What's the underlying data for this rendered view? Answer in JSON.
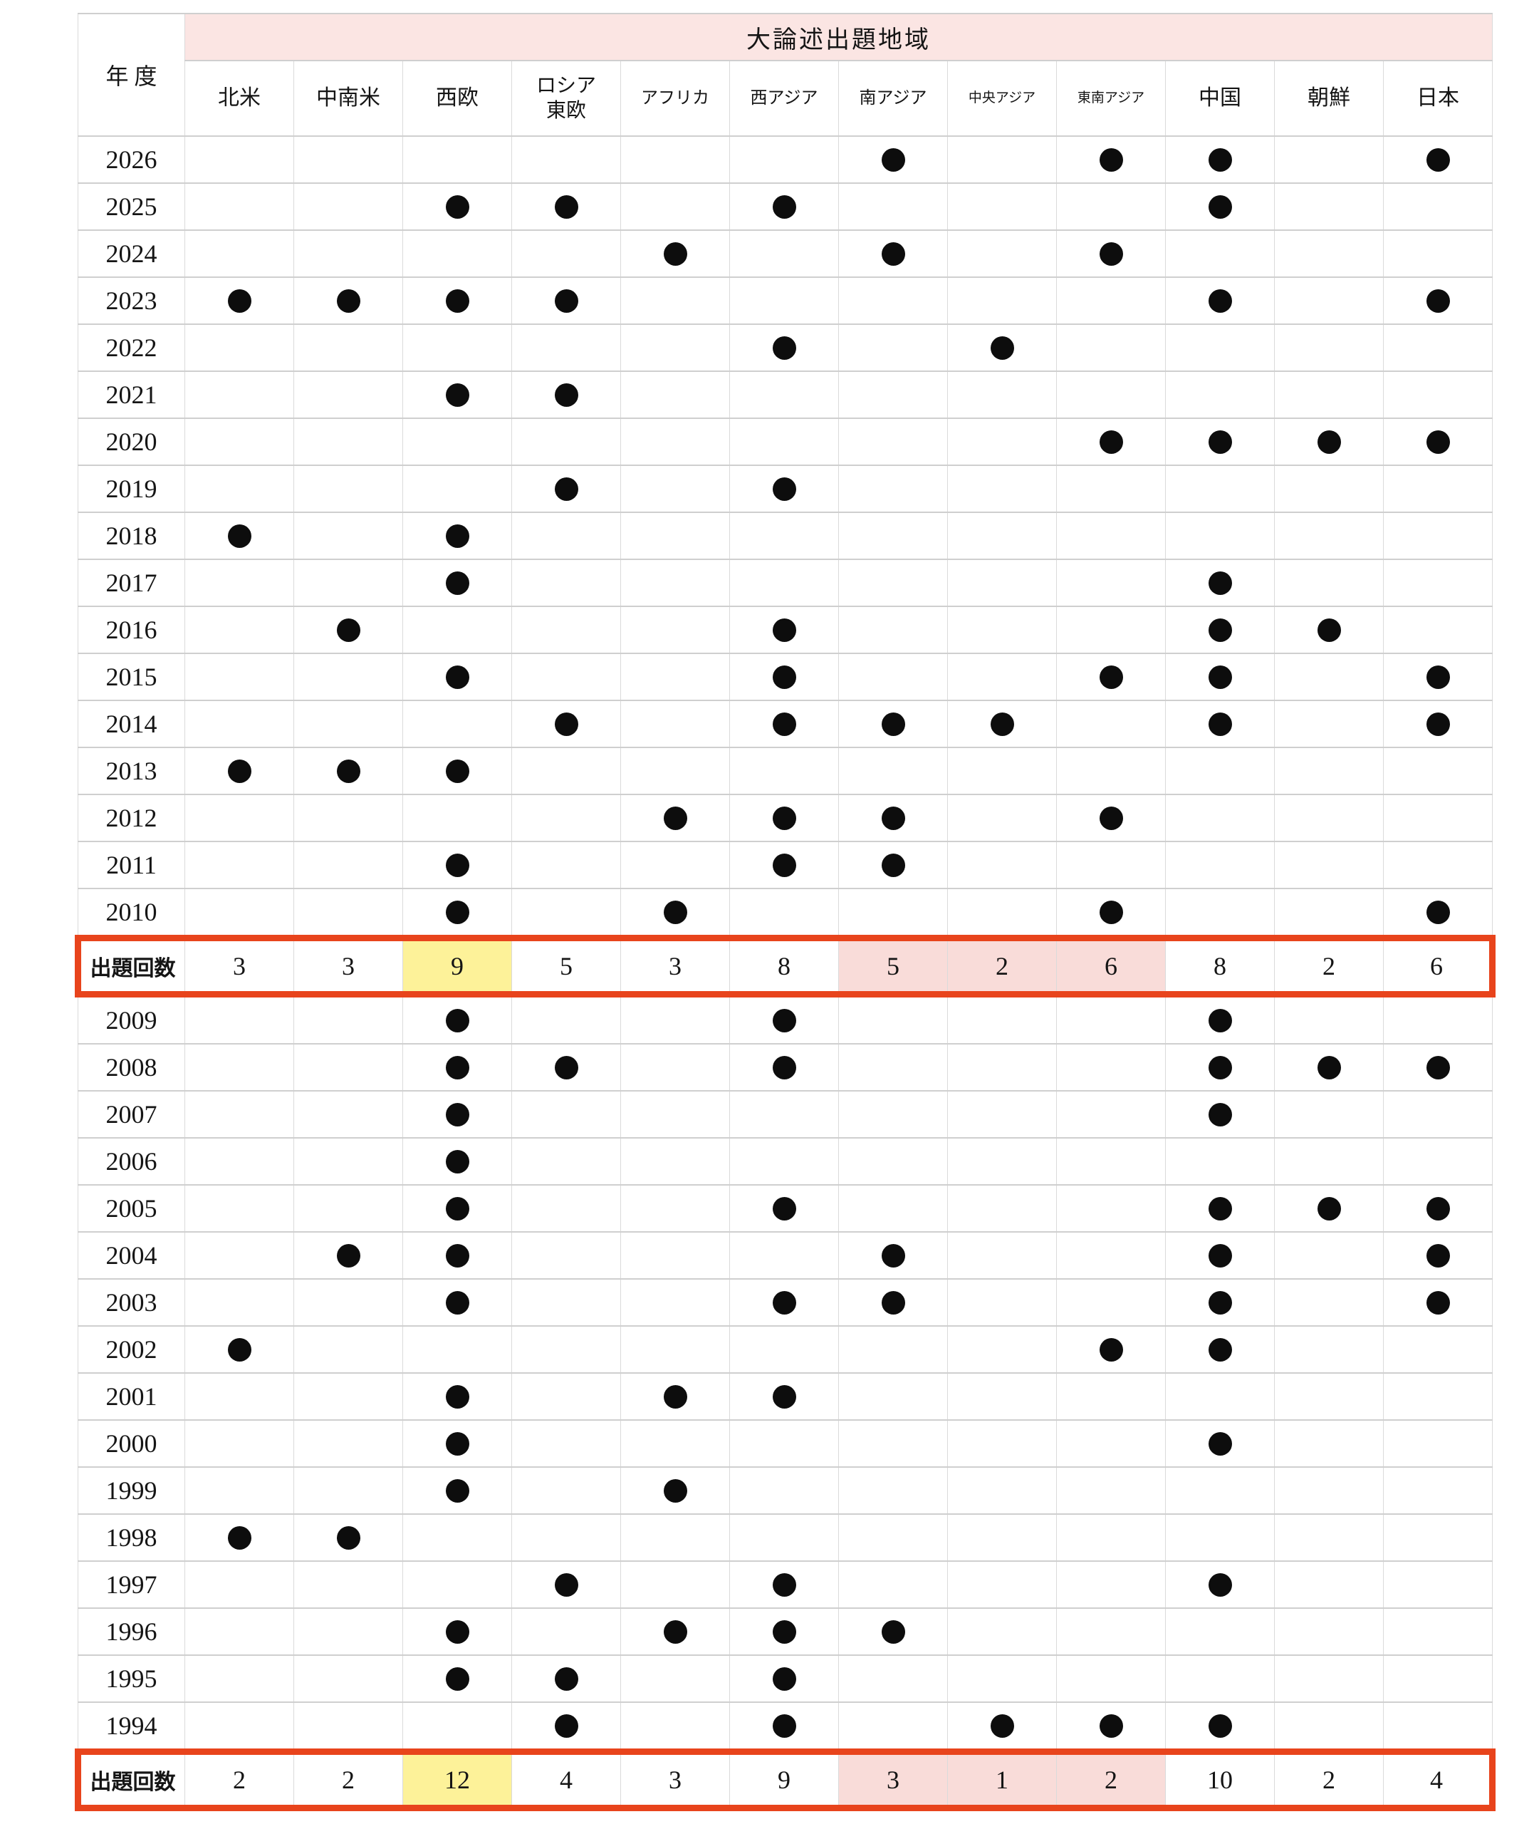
{
  "colors": {
    "header_band": "#fbe5e3",
    "summary_yellow": "#fdf299",
    "summary_pink": "#f9dcd9",
    "summary_border": "#e8441c",
    "dot": "#0d0d0d",
    "gridline": "#d4d4d4"
  },
  "chart_data": {
    "type": "table",
    "title": "大論述出題地域",
    "year_header": "年 度",
    "dot_symbol": "●",
    "columns": [
      {
        "name": "北米"
      },
      {
        "name": "中南米"
      },
      {
        "name": "西欧"
      },
      {
        "name": "ロシア東欧",
        "lines": [
          "ロシア",
          "東欧"
        ]
      },
      {
        "name": "アフリカ"
      },
      {
        "name": "西アジア"
      },
      {
        "name": "南アジア"
      },
      {
        "name": "中央アジア"
      },
      {
        "name": "東南アジア"
      },
      {
        "name": "中国"
      },
      {
        "name": "朝鮮"
      },
      {
        "name": "日本"
      }
    ],
    "highlight": {
      "yellow_columns": [
        2
      ],
      "pink_columns": [
        6,
        7,
        8
      ]
    },
    "rows": [
      {
        "year": "2026",
        "dots": [
          0,
          0,
          0,
          0,
          0,
          0,
          1,
          0,
          1,
          1,
          0,
          1
        ]
      },
      {
        "year": "2025",
        "dots": [
          0,
          0,
          1,
          1,
          0,
          1,
          0,
          0,
          0,
          1,
          0,
          0
        ]
      },
      {
        "year": "2024",
        "dots": [
          0,
          0,
          0,
          0,
          1,
          0,
          1,
          0,
          1,
          0,
          0,
          0
        ]
      },
      {
        "year": "2023",
        "dots": [
          1,
          1,
          1,
          1,
          0,
          0,
          0,
          0,
          0,
          1,
          0,
          1
        ]
      },
      {
        "year": "2022",
        "dots": [
          0,
          0,
          0,
          0,
          0,
          1,
          0,
          1,
          0,
          0,
          0,
          0
        ]
      },
      {
        "year": "2021",
        "dots": [
          0,
          0,
          1,
          1,
          0,
          0,
          0,
          0,
          0,
          0,
          0,
          0
        ]
      },
      {
        "year": "2020",
        "dots": [
          0,
          0,
          0,
          0,
          0,
          0,
          0,
          0,
          1,
          1,
          1,
          1
        ]
      },
      {
        "year": "2019",
        "dots": [
          0,
          0,
          0,
          1,
          0,
          1,
          0,
          0,
          0,
          0,
          0,
          0
        ]
      },
      {
        "year": "2018",
        "dots": [
          1,
          0,
          1,
          0,
          0,
          0,
          0,
          0,
          0,
          0,
          0,
          0
        ]
      },
      {
        "year": "2017",
        "dots": [
          0,
          0,
          1,
          0,
          0,
          0,
          0,
          0,
          0,
          1,
          0,
          0
        ]
      },
      {
        "year": "2016",
        "dots": [
          0,
          1,
          0,
          0,
          0,
          1,
          0,
          0,
          0,
          1,
          1,
          0
        ]
      },
      {
        "year": "2015",
        "dots": [
          0,
          0,
          1,
          0,
          0,
          1,
          0,
          0,
          1,
          1,
          0,
          1
        ]
      },
      {
        "year": "2014",
        "dots": [
          0,
          0,
          0,
          1,
          0,
          1,
          1,
          1,
          0,
          1,
          0,
          1
        ]
      },
      {
        "year": "2013",
        "dots": [
          1,
          1,
          1,
          0,
          0,
          0,
          0,
          0,
          0,
          0,
          0,
          0
        ]
      },
      {
        "year": "2012",
        "dots": [
          0,
          0,
          0,
          0,
          1,
          1,
          1,
          0,
          1,
          0,
          0,
          0
        ]
      },
      {
        "year": "2011",
        "dots": [
          0,
          0,
          1,
          0,
          0,
          1,
          1,
          0,
          0,
          0,
          0,
          0
        ]
      },
      {
        "year": "2010",
        "dots": [
          0,
          0,
          1,
          0,
          1,
          0,
          0,
          0,
          1,
          0,
          0,
          1
        ]
      },
      {
        "label": "出題回数",
        "values": [
          3,
          3,
          9,
          5,
          3,
          8,
          5,
          2,
          6,
          8,
          2,
          6
        ]
      },
      {
        "year": "2009",
        "dots": [
          0,
          0,
          1,
          0,
          0,
          1,
          0,
          0,
          0,
          1,
          0,
          0
        ]
      },
      {
        "year": "2008",
        "dots": [
          0,
          0,
          1,
          1,
          0,
          1,
          0,
          0,
          0,
          1,
          1,
          1
        ]
      },
      {
        "year": "2007",
        "dots": [
          0,
          0,
          1,
          0,
          0,
          0,
          0,
          0,
          0,
          1,
          0,
          0
        ]
      },
      {
        "year": "2006",
        "dots": [
          0,
          0,
          1,
          0,
          0,
          0,
          0,
          0,
          0,
          0,
          0,
          0
        ]
      },
      {
        "year": "2005",
        "dots": [
          0,
          0,
          1,
          0,
          0,
          1,
          0,
          0,
          0,
          1,
          1,
          1
        ]
      },
      {
        "year": "2004",
        "dots": [
          0,
          1,
          1,
          0,
          0,
          0,
          1,
          0,
          0,
          1,
          0,
          1
        ]
      },
      {
        "year": "2003",
        "dots": [
          0,
          0,
          1,
          0,
          0,
          1,
          1,
          0,
          0,
          1,
          0,
          1
        ]
      },
      {
        "year": "2002",
        "dots": [
          1,
          0,
          0,
          0,
          0,
          0,
          0,
          0,
          1,
          1,
          0,
          0
        ]
      },
      {
        "year": "2001",
        "dots": [
          0,
          0,
          1,
          0,
          1,
          1,
          0,
          0,
          0,
          0,
          0,
          0
        ]
      },
      {
        "year": "2000",
        "dots": [
          0,
          0,
          1,
          0,
          0,
          0,
          0,
          0,
          0,
          1,
          0,
          0
        ]
      },
      {
        "year": "1999",
        "dots": [
          0,
          0,
          1,
          0,
          1,
          0,
          0,
          0,
          0,
          0,
          0,
          0
        ]
      },
      {
        "year": "1998",
        "dots": [
          1,
          1,
          0,
          0,
          0,
          0,
          0,
          0,
          0,
          0,
          0,
          0
        ]
      },
      {
        "year": "1997",
        "dots": [
          0,
          0,
          0,
          1,
          0,
          1,
          0,
          0,
          0,
          1,
          0,
          0
        ]
      },
      {
        "year": "1996",
        "dots": [
          0,
          0,
          1,
          0,
          1,
          1,
          1,
          0,
          0,
          0,
          0,
          0
        ]
      },
      {
        "year": "1995",
        "dots": [
          0,
          0,
          1,
          1,
          0,
          1,
          0,
          0,
          0,
          0,
          0,
          0
        ]
      },
      {
        "year": "1994",
        "dots": [
          0,
          0,
          0,
          1,
          0,
          1,
          0,
          1,
          1,
          1,
          0,
          0
        ]
      },
      {
        "label": "出題回数",
        "values": [
          2,
          2,
          12,
          4,
          3,
          9,
          3,
          1,
          2,
          10,
          2,
          4
        ]
      }
    ]
  }
}
